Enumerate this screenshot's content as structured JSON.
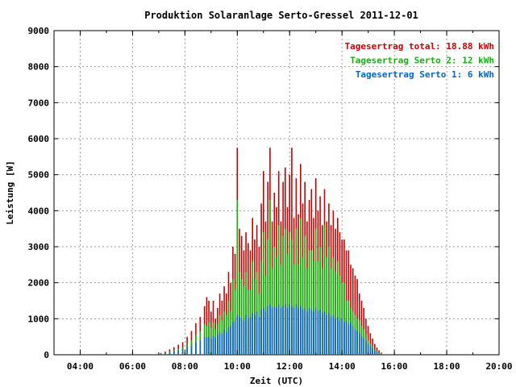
{
  "chart_data": {
    "type": "bar",
    "title": "Produktion Solaranlage Serto-Gressel 2011-12-01",
    "xlabel": "Zeit (UTC)",
    "ylabel": "Leistung [W]",
    "ylim": [
      0,
      9000
    ],
    "xlim": [
      "03:00",
      "20:00"
    ],
    "grid": true,
    "legend_position": "top-right",
    "x_ticks": [
      "04:00",
      "06:00",
      "08:00",
      "10:00",
      "12:00",
      "14:00",
      "16:00",
      "18:00",
      "20:00"
    ],
    "y_ticks": [
      0,
      1000,
      2000,
      3000,
      4000,
      5000,
      6000,
      7000,
      8000,
      9000
    ],
    "legend": [
      {
        "label": "Tagesertrag total: 18.88 kWh",
        "color": "#cc0000"
      },
      {
        "label": "Tagesertrag Serto 2: 12 kWh",
        "color": "#00bb00"
      },
      {
        "label": "Tagesertrag Serto 1: 6 kWh",
        "color": "#0066cc"
      }
    ],
    "x": [
      "07:05",
      "07:15",
      "07:25",
      "07:35",
      "07:45",
      "07:55",
      "08:05",
      "08:15",
      "08:25",
      "08:35",
      "08:45",
      "08:50",
      "08:55",
      "09:00",
      "09:05",
      "09:10",
      "09:15",
      "09:20",
      "09:25",
      "09:30",
      "09:35",
      "09:40",
      "09:45",
      "09:50",
      "09:55",
      "10:00",
      "10:05",
      "10:10",
      "10:15",
      "10:20",
      "10:25",
      "10:30",
      "10:35",
      "10:40",
      "10:45",
      "10:50",
      "10:55",
      "11:00",
      "11:05",
      "11:10",
      "11:15",
      "11:20",
      "11:25",
      "11:30",
      "11:35",
      "11:40",
      "11:45",
      "11:50",
      "11:55",
      "12:00",
      "12:05",
      "12:10",
      "12:15",
      "12:20",
      "12:25",
      "12:30",
      "12:35",
      "12:40",
      "12:45",
      "12:50",
      "12:55",
      "13:00",
      "13:05",
      "13:10",
      "13:15",
      "13:20",
      "13:25",
      "13:30",
      "13:35",
      "13:40",
      "13:45",
      "13:50",
      "13:55",
      "14:00",
      "14:05",
      "14:10",
      "14:15",
      "14:20",
      "14:25",
      "14:30",
      "14:35",
      "14:40",
      "14:45",
      "14:50",
      "14:55",
      "15:00",
      "15:05",
      "15:10",
      "15:15",
      "15:20",
      "15:25",
      "15:30"
    ],
    "series": [
      {
        "name": "Serto 1",
        "color": "#0066cc",
        "values": [
          20,
          40,
          70,
          90,
          120,
          150,
          200,
          260,
          330,
          400,
          500,
          480,
          500,
          450,
          520,
          480,
          550,
          600,
          580,
          700,
          620,
          750,
          800,
          900,
          950,
          1100,
          1050,
          1000,
          950,
          1100,
          1000,
          1050,
          1150,
          1100,
          1200,
          1050,
          1250,
          1300,
          1200,
          1350,
          1400,
          1300,
          1350,
          1300,
          1400,
          1300,
          1350,
          1400,
          1300,
          1400,
          1350,
          1300,
          1400,
          1300,
          1350,
          1250,
          1300,
          1200,
          1300,
          1250,
          1200,
          1300,
          1200,
          1250,
          1150,
          1200,
          1100,
          1150,
          1050,
          1100,
          1000,
          1050,
          950,
          1000,
          900,
          950,
          850,
          900,
          800,
          700,
          650,
          600,
          520,
          450,
          380,
          300,
          250,
          180,
          120,
          80,
          50,
          20
        ]
      },
      {
        "name": "Serto 2",
        "color": "#00bb00",
        "values": [
          30,
          50,
          80,
          120,
          160,
          200,
          300,
          400,
          550,
          650,
          850,
          800,
          900,
          750,
          900,
          700,
          850,
          1100,
          950,
          1200,
          1100,
          1500,
          1200,
          2100,
          1800,
          4300,
          2300,
          2100,
          1900,
          2300,
          1800,
          1800,
          2600,
          2100,
          2300,
          1700,
          2600,
          3400,
          2200,
          3200,
          4300,
          2400,
          3000,
          2700,
          3600,
          2500,
          3300,
          3500,
          2800,
          3400,
          3200,
          2500,
          3500,
          2500,
          3800,
          2700,
          3300,
          2400,
          2900,
          2900,
          2600,
          3500,
          2600,
          3000,
          2400,
          3600,
          2700,
          3000,
          2400,
          2700,
          2300,
          2600,
          2200,
          2000,
          2000,
          1500,
          1500,
          1300,
          1200,
          1100,
          1000,
          950,
          800,
          700,
          550,
          400,
          300,
          250,
          150,
          100,
          60,
          30
        ]
      },
      {
        "name": "total",
        "color": "#cc0000",
        "values": [
          50,
          90,
          150,
          210,
          280,
          350,
          500,
          660,
          880,
          1050,
          1350,
          1600,
          1500,
          1200,
          1500,
          1000,
          1300,
          1700,
          1500,
          1900,
          1700,
          2300,
          2000,
          3000,
          2800,
          5750,
          3500,
          3300,
          2900,
          3400,
          3100,
          2900,
          3800,
          3200,
          3600,
          3000,
          4200,
          5100,
          3700,
          4800,
          5750,
          3700,
          4500,
          4100,
          5100,
          3700,
          4800,
          5200,
          4100,
          5000,
          5750,
          3800,
          4900,
          3900,
          5300,
          4200,
          4800,
          3700,
          4300,
          4600,
          3800,
          4900,
          4000,
          4400,
          3600,
          4600,
          3700,
          4200,
          3600,
          4000,
          3500,
          3800,
          3400,
          3200,
          3200,
          2900,
          2900,
          2500,
          2400,
          2200,
          2100,
          1700,
          1500,
          1300,
          1000,
          800,
          600,
          450,
          300,
          200,
          120,
          60
        ]
      }
    ]
  }
}
